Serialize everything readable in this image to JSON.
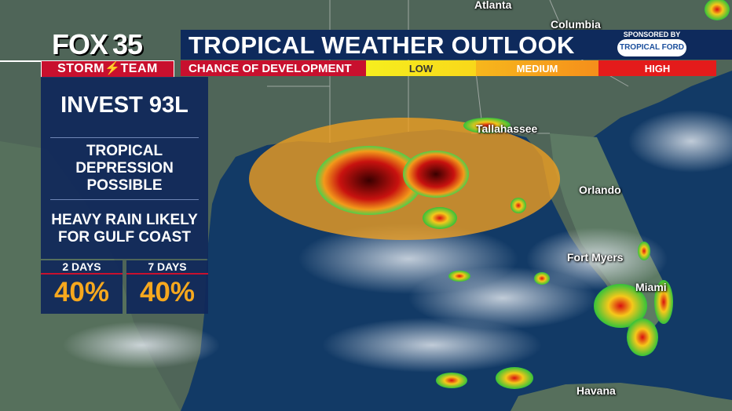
{
  "brand": {
    "fox": "FOX",
    "number": "35",
    "storm_team": "STORM⚡TEAM"
  },
  "title": "TROPICAL WEATHER OUTLOOK",
  "sponsor": {
    "label": "SPONSORED BY",
    "logo_text": "TROPICAL FORD"
  },
  "development": {
    "label": "CHANCE OF DEVELOPMENT",
    "low": "LOW",
    "medium": "MEDIUM",
    "high": "HIGH"
  },
  "storm": {
    "name": "INVEST 93L",
    "status": "TROPICAL\nDEPRESSION\nPOSSIBLE",
    "hazard": "HEAVY RAIN LIKELY\nFOR GULF COAST",
    "two_day_label": "2 DAYS",
    "two_day_pct": "40%",
    "seven_day_label": "7 DAYS",
    "seven_day_pct": "40%"
  },
  "cities": {
    "atlanta": "Atlanta",
    "columbia": "Columbia",
    "tallahassee": "Tallahassee",
    "orlando": "Orlando",
    "fort_myers": "Fort Myers",
    "miami": "Miami",
    "havana": "Havana"
  },
  "colors": {
    "low": "#f6ee1e",
    "medium": "#f7a11c",
    "high": "#e41b1b",
    "brand_red": "#c8102e",
    "navy": "#0e2a5c"
  }
}
